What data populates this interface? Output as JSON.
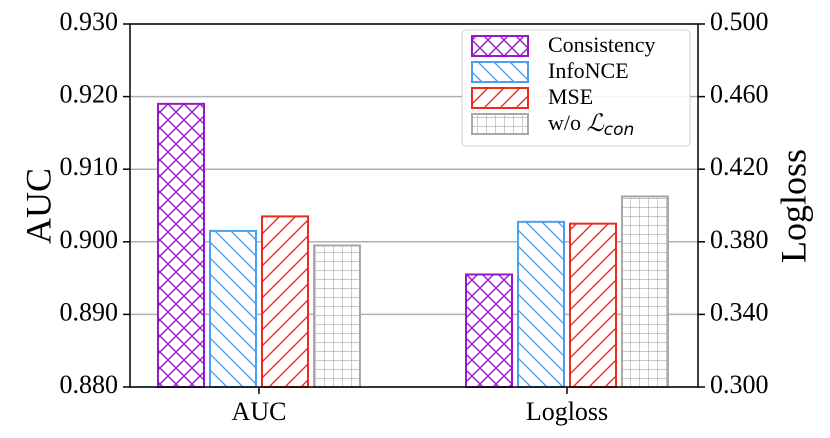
{
  "chart_data": {
    "type": "bar",
    "categories": [
      "AUC",
      "Logloss"
    ],
    "left_axis": {
      "label": "AUC",
      "ylim": [
        0.88,
        0.93
      ],
      "ticks": [
        "0.880",
        "0.890",
        "0.900",
        "0.910",
        "0.920",
        "0.930"
      ],
      "tick_values": [
        0.88,
        0.89,
        0.9,
        0.91,
        0.92,
        0.93
      ]
    },
    "right_axis": {
      "label": "Logloss",
      "ylim": [
        0.3,
        0.5
      ],
      "ticks": [
        "0.300",
        "0.340",
        "0.380",
        "0.420",
        "0.460",
        "0.500"
      ],
      "tick_values": [
        0.3,
        0.34,
        0.38,
        0.42,
        0.46,
        0.5
      ]
    },
    "series": [
      {
        "name": "Consistency",
        "color": "#9a16c8",
        "pattern": "crosshatch",
        "values": [
          0.919,
          0.362
        ]
      },
      {
        "name": "InfoNCE",
        "color": "#4a9ff0",
        "pattern": "backslash",
        "values": [
          0.9015,
          0.391
        ]
      },
      {
        "name": "MSE",
        "color": "#f02a1c",
        "pattern": "slash",
        "values": [
          0.9035,
          0.39
        ]
      },
      {
        "name": "w/o ℒ_con",
        "color": "#a8a8a8",
        "pattern": "grid",
        "values": [
          0.8995,
          0.405
        ]
      }
    ],
    "legend": {
      "placement": "top-right",
      "labels": [
        "Consistency",
        "InfoNCE",
        "MSE",
        "w/o "
      ],
      "math_label": {
        "base": "ℒ",
        "sub": "con"
      }
    },
    "grid": "horizontal"
  }
}
